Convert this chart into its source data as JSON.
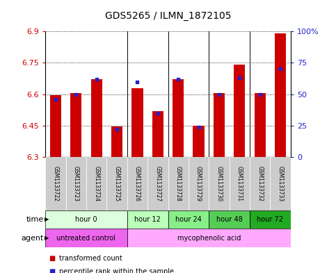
{
  "title": "GDS5265 / ILMN_1872105",
  "samples": [
    "GSM1133722",
    "GSM1133723",
    "GSM1133724",
    "GSM1133725",
    "GSM1133726",
    "GSM1133727",
    "GSM1133728",
    "GSM1133729",
    "GSM1133730",
    "GSM1133731",
    "GSM1133732",
    "GSM1133733"
  ],
  "transformed_count": [
    6.595,
    6.605,
    6.672,
    6.447,
    6.63,
    6.52,
    6.672,
    6.448,
    6.605,
    6.742,
    6.605,
    6.89
  ],
  "percentile_rank": [
    46,
    50,
    62,
    22,
    60,
    35,
    62,
    24,
    50,
    63,
    50,
    70
  ],
  "ylim_left": [
    6.3,
    6.9
  ],
  "ylim_right": [
    0,
    100
  ],
  "yticks_left": [
    6.3,
    6.45,
    6.6,
    6.75,
    6.9
  ],
  "yticks_right": [
    0,
    25,
    50,
    75,
    100
  ],
  "ytick_labels_left": [
    "6.3",
    "6.45",
    "6.6",
    "6.75",
    "6.9"
  ],
  "ytick_labels_right": [
    "0",
    "25",
    "50",
    "75",
    "100%"
  ],
  "bar_color": "#cc0000",
  "dot_color": "#2222cc",
  "bar_bottom": 6.3,
  "time_groups": [
    {
      "label": "hour 0",
      "start": 0,
      "end": 4,
      "color": "#ddffdd"
    },
    {
      "label": "hour 12",
      "start": 4,
      "end": 6,
      "color": "#bbffbb"
    },
    {
      "label": "hour 24",
      "start": 6,
      "end": 8,
      "color": "#88ee88"
    },
    {
      "label": "hour 48",
      "start": 8,
      "end": 10,
      "color": "#55cc55"
    },
    {
      "label": "hour 72",
      "start": 10,
      "end": 12,
      "color": "#22aa22"
    }
  ],
  "agent_groups": [
    {
      "label": "untreated control",
      "start": 0,
      "end": 4,
      "color": "#ee66ee"
    },
    {
      "label": "mycophenolic acid",
      "start": 4,
      "end": 12,
      "color": "#ffaaff"
    }
  ],
  "legend_items": [
    {
      "label": "transformed count",
      "color": "#cc0000"
    },
    {
      "label": "percentile rank within the sample",
      "color": "#2222cc"
    }
  ],
  "bar_width": 0.55,
  "background_color": "#ffffff",
  "plot_bg_color": "#ffffff",
  "grid_color": "#000000",
  "tick_color_left": "#cc0000",
  "tick_color_right": "#2222cc",
  "sample_bg_color": "#cccccc",
  "separator_color": "#000000",
  "n_samples": 12,
  "group_separators": [
    3.5,
    5.5,
    7.5,
    9.5
  ]
}
